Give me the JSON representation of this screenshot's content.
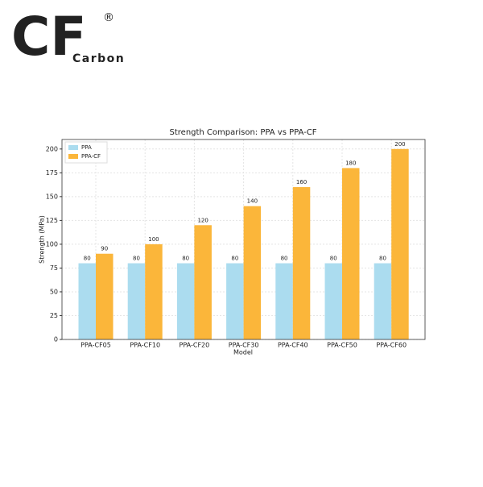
{
  "logo": {
    "mark": "CF",
    "name": "Carbon",
    "registered": "®"
  },
  "chart_data": {
    "type": "bar",
    "title": "Strength Comparison: PPA vs PPA-CF",
    "xlabel": "Model",
    "ylabel": "Strength (MPa)",
    "categories": [
      "PPA-CF05",
      "PPA-CF10",
      "PPA-CF20",
      "PPA-CF30",
      "PPA-CF40",
      "PPA-CF50",
      "PPA-CF60"
    ],
    "series": [
      {
        "name": "PPA",
        "color": "#abdcef",
        "values": [
          80,
          80,
          80,
          80,
          80,
          80,
          80
        ]
      },
      {
        "name": "PPA-CF",
        "color": "#fbb63a",
        "values": [
          90,
          100,
          120,
          140,
          160,
          180,
          200
        ]
      }
    ],
    "ylim": [
      0,
      210
    ],
    "yticks": [
      0,
      25,
      50,
      75,
      100,
      125,
      150,
      175,
      200
    ],
    "grid": true,
    "legend": "upper-left"
  }
}
